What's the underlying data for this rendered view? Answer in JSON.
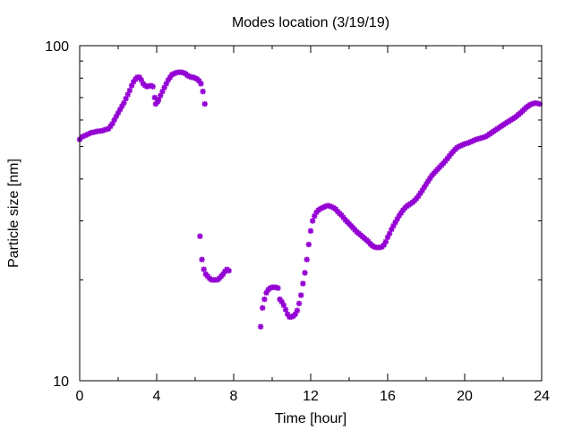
{
  "chart_data": {
    "type": "scatter",
    "title": "Modes location (3/19/19)",
    "xlabel": "Time [hour]",
    "ylabel": "Particle size [nm]",
    "xlim": [
      0,
      24
    ],
    "ylim": [
      10,
      100
    ],
    "yscale": "log",
    "xticks": [
      "0",
      "4",
      "8",
      "12",
      "16",
      "20",
      "24"
    ],
    "yticks": [
      "10",
      "100"
    ],
    "grid": false,
    "marker": "asterisk",
    "color": "#9400d3",
    "series": [
      {
        "points": [
          [
            0.0,
            52.5
          ],
          [
            0.15,
            53.5
          ],
          [
            0.3,
            54
          ],
          [
            0.45,
            54.5
          ],
          [
            0.6,
            55
          ],
          [
            0.75,
            55.2
          ],
          [
            0.9,
            55.5
          ],
          [
            1.05,
            55.6
          ],
          [
            1.2,
            55.8
          ],
          [
            1.35,
            56.2
          ],
          [
            1.5,
            56.5
          ],
          [
            1.6,
            57.5
          ],
          [
            1.7,
            58.5
          ],
          [
            1.8,
            60
          ],
          [
            1.9,
            61.5
          ],
          [
            2.0,
            63
          ],
          [
            2.1,
            64.5
          ],
          [
            2.2,
            66
          ],
          [
            2.3,
            67.5
          ],
          [
            2.4,
            69.5
          ],
          [
            2.5,
            71.5
          ],
          [
            2.6,
            73.5
          ],
          [
            2.7,
            76
          ],
          [
            2.8,
            78
          ],
          [
            2.9,
            79.5
          ],
          [
            3.0,
            80.5
          ],
          [
            3.1,
            80.5
          ],
          [
            3.2,
            79
          ],
          [
            3.3,
            77
          ],
          [
            3.4,
            76
          ],
          [
            3.5,
            75.5
          ],
          [
            3.6,
            75.8
          ],
          [
            3.7,
            76
          ],
          [
            3.8,
            75.5
          ],
          [
            3.9,
            70
          ],
          [
            3.95,
            67
          ],
          [
            4.05,
            68
          ],
          [
            4.1,
            69
          ],
          [
            4.2,
            71
          ],
          [
            4.3,
            73
          ],
          [
            4.4,
            75
          ],
          [
            4.5,
            77
          ],
          [
            4.6,
            79
          ],
          [
            4.7,
            80.5
          ],
          [
            4.8,
            82
          ],
          [
            4.9,
            82.5
          ],
          [
            5.0,
            83
          ],
          [
            5.1,
            83.3
          ],
          [
            5.2,
            83.3
          ],
          [
            5.3,
            83.3
          ],
          [
            5.4,
            83
          ],
          [
            5.5,
            82.5
          ],
          [
            5.6,
            81.5
          ],
          [
            5.7,
            81
          ],
          [
            5.8,
            80.5
          ],
          [
            5.9,
            80.5
          ],
          [
            6.0,
            80
          ],
          [
            6.1,
            79.5
          ],
          [
            6.2,
            78.5
          ],
          [
            6.3,
            77
          ],
          [
            6.4,
            73
          ],
          [
            6.5,
            67
          ],
          [
            6.25,
            27
          ],
          [
            6.35,
            23
          ],
          [
            6.45,
            21.5
          ],
          [
            6.55,
            20.8
          ],
          [
            6.65,
            20.5
          ],
          [
            6.75,
            20.2
          ],
          [
            6.85,
            20
          ],
          [
            6.95,
            20
          ],
          [
            7.05,
            20
          ],
          [
            7.15,
            20
          ],
          [
            7.25,
            20.2
          ],
          [
            7.35,
            20.5
          ],
          [
            7.45,
            20.8
          ],
          [
            7.55,
            21.2
          ],
          [
            7.65,
            21.5
          ],
          [
            7.75,
            21.3
          ],
          [
            9.4,
            14.5
          ],
          [
            9.5,
            16.5
          ],
          [
            9.6,
            17.5
          ],
          [
            9.7,
            18.3
          ],
          [
            9.8,
            18.7
          ],
          [
            9.9,
            18.9
          ],
          [
            10.0,
            19
          ],
          [
            10.1,
            19
          ],
          [
            10.2,
            19
          ],
          [
            10.3,
            18.9
          ],
          [
            10.4,
            17.5
          ],
          [
            10.5,
            17.2
          ],
          [
            10.6,
            16.8
          ],
          [
            10.7,
            16.3
          ],
          [
            10.8,
            15.8
          ],
          [
            10.9,
            15.5
          ],
          [
            11.0,
            15.5
          ],
          [
            11.1,
            15.6
          ],
          [
            11.2,
            15.8
          ],
          [
            11.3,
            16.2
          ],
          [
            11.4,
            17
          ],
          [
            11.5,
            18
          ],
          [
            11.6,
            19.5
          ],
          [
            11.7,
            21
          ],
          [
            11.8,
            23
          ],
          [
            11.9,
            25.5
          ],
          [
            12.0,
            28
          ],
          [
            12.1,
            30
          ],
          [
            12.2,
            31
          ],
          [
            12.3,
            31.8
          ],
          [
            12.4,
            32.3
          ],
          [
            12.5,
            32.6
          ],
          [
            12.6,
            32.8
          ],
          [
            12.7,
            33
          ],
          [
            12.8,
            33.2
          ],
          [
            12.9,
            33.3
          ],
          [
            13.0,
            33.2
          ],
          [
            13.1,
            33
          ],
          [
            13.2,
            32.8
          ],
          [
            13.3,
            32.5
          ],
          [
            13.4,
            32
          ],
          [
            13.5,
            31.6
          ],
          [
            13.6,
            31.2
          ],
          [
            13.7,
            30.7
          ],
          [
            13.8,
            30.2
          ],
          [
            13.9,
            29.8
          ],
          [
            14.0,
            29.4
          ],
          [
            14.1,
            29
          ],
          [
            14.2,
            28.6
          ],
          [
            14.3,
            28.2
          ],
          [
            14.4,
            27.8
          ],
          [
            14.5,
            27.5
          ],
          [
            14.6,
            27.2
          ],
          [
            14.7,
            26.9
          ],
          [
            14.8,
            26.6
          ],
          [
            14.9,
            26.3
          ],
          [
            15.0,
            26
          ],
          [
            15.1,
            25.6
          ],
          [
            15.2,
            25.3
          ],
          [
            15.3,
            25.1
          ],
          [
            15.4,
            25
          ],
          [
            15.5,
            25
          ],
          [
            15.6,
            25
          ],
          [
            15.7,
            25.1
          ],
          [
            15.8,
            25.4
          ],
          [
            15.9,
            26
          ],
          [
            16.0,
            26.8
          ],
          [
            16.1,
            27.5
          ],
          [
            16.2,
            28.3
          ],
          [
            16.3,
            29
          ],
          [
            16.4,
            29.7
          ],
          [
            16.5,
            30.4
          ],
          [
            16.6,
            31.1
          ],
          [
            16.7,
            31.7
          ],
          [
            16.8,
            32.3
          ],
          [
            16.9,
            32.8
          ],
          [
            17.0,
            33.2
          ],
          [
            17.1,
            33.5
          ],
          [
            17.2,
            33.8
          ],
          [
            17.3,
            34.1
          ],
          [
            17.4,
            34.5
          ],
          [
            17.5,
            35
          ],
          [
            17.6,
            35.6
          ],
          [
            17.7,
            36.3
          ],
          [
            17.8,
            37
          ],
          [
            17.9,
            37.8
          ],
          [
            18.0,
            38.6
          ],
          [
            18.1,
            39.4
          ],
          [
            18.2,
            40.2
          ],
          [
            18.3,
            41
          ],
          [
            18.4,
            41.6
          ],
          [
            18.5,
            42.2
          ],
          [
            18.6,
            42.8
          ],
          [
            18.7,
            43.4
          ],
          [
            18.8,
            44
          ],
          [
            18.9,
            44.6
          ],
          [
            19.0,
            45.3
          ],
          [
            19.1,
            46
          ],
          [
            19.2,
            46.8
          ],
          [
            19.3,
            47.6
          ],
          [
            19.4,
            48.3
          ],
          [
            19.5,
            49
          ],
          [
            19.6,
            49.6
          ],
          [
            19.7,
            50
          ],
          [
            19.8,
            50.3
          ],
          [
            19.9,
            50.6
          ],
          [
            20.0,
            50.9
          ],
          [
            20.1,
            51.1
          ],
          [
            20.2,
            51.3
          ],
          [
            20.3,
            51.6
          ],
          [
            20.4,
            51.9
          ],
          [
            20.5,
            52.2
          ],
          [
            20.6,
            52.5
          ],
          [
            20.7,
            52.7
          ],
          [
            20.8,
            52.9
          ],
          [
            20.9,
            53.1
          ],
          [
            21.0,
            53.3
          ],
          [
            21.1,
            53.6
          ],
          [
            21.2,
            54
          ],
          [
            21.3,
            54.5
          ],
          [
            21.4,
            55
          ],
          [
            21.5,
            55.5
          ],
          [
            21.6,
            56
          ],
          [
            21.7,
            56.5
          ],
          [
            21.8,
            57
          ],
          [
            21.9,
            57.5
          ],
          [
            22.0,
            58
          ],
          [
            22.1,
            58.5
          ],
          [
            22.2,
            59
          ],
          [
            22.3,
            59.5
          ],
          [
            22.4,
            60
          ],
          [
            22.5,
            60.5
          ],
          [
            22.6,
            61
          ],
          [
            22.7,
            61.6
          ],
          [
            22.8,
            62.3
          ],
          [
            22.9,
            63
          ],
          [
            23.0,
            63.8
          ],
          [
            23.1,
            64.6
          ],
          [
            23.2,
            65.4
          ],
          [
            23.3,
            66
          ],
          [
            23.4,
            66.6
          ],
          [
            23.5,
            67
          ],
          [
            23.6,
            67.3
          ],
          [
            23.7,
            67.4
          ],
          [
            23.8,
            67.2
          ],
          [
            23.9,
            67
          ]
        ]
      }
    ]
  }
}
